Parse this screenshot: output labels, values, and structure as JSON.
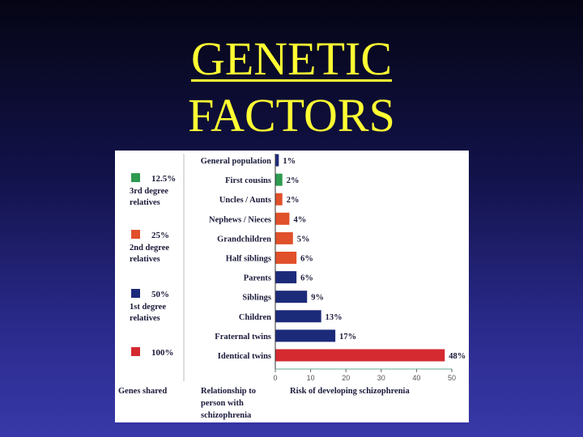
{
  "slide": {
    "title_line1": "GENETIC",
    "title_line2": "FACTORS"
  },
  "chart_data": {
    "type": "bar",
    "orientation": "horizontal",
    "categories": [
      "General population",
      "First cousins",
      "Uncles / Aunts",
      "Nephews / Nieces",
      "Grandchildren",
      "Half siblings",
      "Parents",
      "Siblings",
      "Children",
      "Fraternal twins",
      "Identical twins"
    ],
    "values": [
      1,
      2,
      2,
      4,
      5,
      6,
      6,
      9,
      13,
      17,
      48
    ],
    "value_labels": [
      "1%",
      "2%",
      "2%",
      "4%",
      "5%",
      "6%",
      "6%",
      "9%",
      "13%",
      "17%",
      "48%"
    ],
    "bar_colors": [
      "#1c2a7a",
      "#2e9a50",
      "#e0502a",
      "#e0502a",
      "#e0502a",
      "#e0502a",
      "#1c2a7a",
      "#1c2a7a",
      "#1c2a7a",
      "#1c2a7a",
      "#d42a30"
    ],
    "xlim": [
      0,
      50
    ],
    "xticks": [
      0,
      10,
      20,
      30,
      40,
      50
    ],
    "xlabel": "Risk of developing schizophrenia",
    "category_axis_label_lines": [
      "Relationship to",
      "person with",
      "schizophrenia"
    ],
    "genes_shared_label": "Genes shared",
    "genes_shared_groups": [
      {
        "percent": "12.5%",
        "lines": [
          "3rd degree",
          "relatives"
        ],
        "color": "#2e9a50"
      },
      {
        "percent": "25%",
        "lines": [
          "2nd degree",
          "relatives"
        ],
        "color": "#e0502a"
      },
      {
        "percent": "50%",
        "lines": [
          "1st degree",
          "relatives"
        ],
        "color": "#1c2a7a"
      },
      {
        "percent": "100%",
        "lines": [],
        "color": "#d42a30"
      }
    ]
  }
}
